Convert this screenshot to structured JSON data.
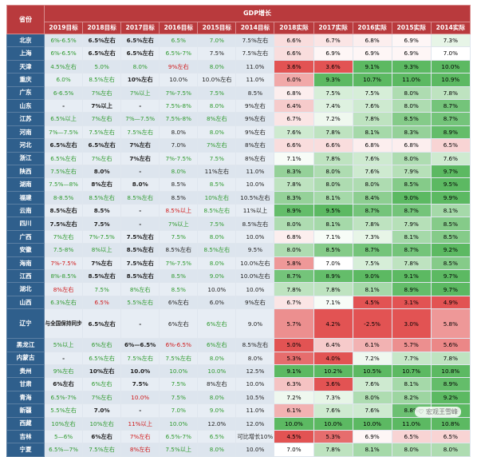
{
  "header": {
    "province_label": "省份",
    "group_label": "GDP增长",
    "columns": [
      "2019目标",
      "2018目标",
      "2017目标",
      "2016目标",
      "2015目标",
      "2014目标",
      "2018实际",
      "2017实际",
      "2016实际",
      "2015实际",
      "2014实际"
    ]
  },
  "colors": {
    "header_red": "#b93a3d",
    "province_blue": "#2f5f8c",
    "target_green": "#2f9a2f",
    "target_red": "#d01c1c",
    "heat_high_green": "#5dbb63",
    "heat_low_red": "#e35b5b"
  },
  "rows": [
    {
      "province": "北京",
      "targets": [
        [
          "6%-6.5%",
          "g"
        ],
        [
          "6.5%左右",
          "k"
        ],
        [
          "6.5%左右",
          "k"
        ],
        [
          "6.5%",
          "g"
        ],
        [
          "7.0%",
          "g"
        ],
        [
          "7.5%左右",
          "k"
        ]
      ],
      "actuals": [
        "6.6%",
        "6.7%",
        "6.8%",
        "6.9%",
        "7.3%"
      ]
    },
    {
      "province": "上海",
      "targets": [
        [
          "6%-6.5%",
          "g"
        ],
        [
          "6.5%左右",
          "k"
        ],
        [
          "6.5%左右",
          "k"
        ],
        [
          "6.5%-7%",
          "g"
        ],
        [
          "7.5%",
          "k"
        ],
        [
          "7.5%左右",
          "k"
        ]
      ],
      "actuals": [
        "6.6%",
        "6.9%",
        "6.9%",
        "6.9%",
        "7.0%"
      ]
    },
    {
      "province": "天津",
      "targets": [
        [
          "4.5%左右",
          "g"
        ],
        [
          "5.0%",
          "g"
        ],
        [
          "8.0%",
          "g"
        ],
        [
          "9%左右",
          "r"
        ],
        [
          "8.0%",
          "g"
        ],
        [
          "11.0%",
          "k"
        ]
      ],
      "actuals": [
        "3.6%",
        "3.6%",
        "9.1%",
        "9.3%",
        "10.0%"
      ]
    },
    {
      "province": "重庆",
      "targets": [
        [
          "6.0%",
          "g"
        ],
        [
          "8.5%左右",
          "g"
        ],
        [
          "10%左右",
          "k"
        ],
        [
          "10.0%",
          "k"
        ],
        [
          "10.0%左右",
          "k"
        ],
        [
          "11.0%",
          "k"
        ]
      ],
      "actuals": [
        "6.0%",
        "9.3%",
        "10.7%",
        "11.0%",
        "10.9%"
      ]
    },
    {
      "province": "广东",
      "targets": [
        [
          "6-6.5%",
          "g"
        ],
        [
          "7%左右",
          "g"
        ],
        [
          "7%以上",
          "g"
        ],
        [
          "7%-7.5%",
          "g"
        ],
        [
          "7.5%",
          "g"
        ],
        [
          "8.5%",
          "k"
        ]
      ],
      "actuals": [
        "6.8%",
        "7.5%",
        "7.5%",
        "8.0%",
        "7.8%"
      ]
    },
    {
      "province": "山东",
      "targets": [
        [
          "-",
          "k"
        ],
        [
          "7%以上",
          "k"
        ],
        [
          "-",
          "k"
        ],
        [
          "7.5%-8%",
          "g"
        ],
        [
          "8.0%",
          "g"
        ],
        [
          "9%左右",
          "k"
        ]
      ],
      "actuals": [
        "6.4%",
        "7.4%",
        "7.6%",
        "8.0%",
        "8.7%"
      ]
    },
    {
      "province": "江苏",
      "targets": [
        [
          "6.5%以上",
          "g"
        ],
        [
          "7%左右",
          "g"
        ],
        [
          "7%—7.5%",
          "g"
        ],
        [
          "7.5%-8%",
          "g"
        ],
        [
          "8%左右",
          "g"
        ],
        [
          "9%左右",
          "k"
        ]
      ],
      "actuals": [
        "6.7%",
        "7.2%",
        "7.8%",
        "8.5%",
        "8.7%"
      ]
    },
    {
      "province": "河南",
      "targets": [
        [
          "7%—7.5%",
          "g"
        ],
        [
          "7.5%左右",
          "g"
        ],
        [
          "7.5%左右",
          "g"
        ],
        [
          "8.0%",
          "k"
        ],
        [
          "8.0%",
          "g"
        ],
        [
          "9%左右",
          "k"
        ]
      ],
      "actuals": [
        "7.6%",
        "7.8%",
        "8.1%",
        "8.3%",
        "8.9%"
      ]
    },
    {
      "province": "河北",
      "targets": [
        [
          "6.5%左右",
          "k"
        ],
        [
          "6.5%左右",
          "k"
        ],
        [
          "7%左右",
          "k"
        ],
        [
          "7.0%",
          "k"
        ],
        [
          "7%左右",
          "g"
        ],
        [
          "8%左右",
          "k"
        ]
      ],
      "actuals": [
        "6.6%",
        "6.6%",
        "6.8%",
        "6.8%",
        "6.5%"
      ]
    },
    {
      "province": "浙江",
      "targets": [
        [
          "6.5%左右",
          "g"
        ],
        [
          "7%左右",
          "g"
        ],
        [
          "7%左右",
          "k"
        ],
        [
          "7%-7.5%",
          "g"
        ],
        [
          "7.5%",
          "g"
        ],
        [
          "8%左右",
          "k"
        ]
      ],
      "actuals": [
        "7.1%",
        "7.8%",
        "7.6%",
        "8.0%",
        "7.6%"
      ]
    },
    {
      "province": "陕西",
      "targets": [
        [
          "7.5%左右",
          "g"
        ],
        [
          "8.0%",
          "k"
        ],
        [
          "-",
          "k"
        ],
        [
          "8.0%",
          "g"
        ],
        [
          "11%左右",
          "k"
        ],
        [
          "11.0%",
          "k"
        ]
      ],
      "actuals": [
        "8.3%",
        "8.0%",
        "7.6%",
        "7.9%",
        "9.7%"
      ]
    },
    {
      "province": "湖南",
      "targets": [
        [
          "7.5%—8%",
          "g"
        ],
        [
          "8%左右",
          "k"
        ],
        [
          "8.0%",
          "k"
        ],
        [
          "8.5%",
          "k"
        ],
        [
          "8.5%",
          "g"
        ],
        [
          "10.0%",
          "k"
        ]
      ],
      "actuals": [
        "7.8%",
        "8.0%",
        "8.0%",
        "8.5%",
        "9.5%"
      ]
    },
    {
      "province": "福建",
      "targets": [
        [
          "8-8.5%",
          "g"
        ],
        [
          "8.5%左右",
          "g"
        ],
        [
          "8.5%左右",
          "g"
        ],
        [
          "8.5%",
          "k"
        ],
        [
          "10%左右",
          "g"
        ],
        [
          "10.5%左右",
          "k"
        ]
      ],
      "actuals": [
        "8.3%",
        "8.1%",
        "8.4%",
        "9.0%",
        "9.9%"
      ]
    },
    {
      "province": "云南",
      "targets": [
        [
          "8.5%左右",
          "k"
        ],
        [
          "8.5%",
          "k"
        ],
        [
          "-",
          "k"
        ],
        [
          "8.5%以上",
          "r"
        ],
        [
          "8.5%左右",
          "g"
        ],
        [
          "11%以上",
          "k"
        ]
      ],
      "actuals": [
        "8.9%",
        "9.5%",
        "8.7%",
        "8.7%",
        "8.1%"
      ]
    },
    {
      "province": "四川",
      "targets": [
        [
          "7.5%左右",
          "k"
        ],
        [
          "7.5%",
          "k"
        ],
        [
          "-",
          "k"
        ],
        [
          "7%以上",
          "g"
        ],
        [
          "7.5%",
          "g"
        ],
        [
          "8.5%左右",
          "k"
        ]
      ],
      "actuals": [
        "8.0%",
        "8.1%",
        "7.8%",
        "7.9%",
        "8.5%"
      ]
    },
    {
      "province": "广西",
      "targets": [
        [
          "7%左右",
          "g"
        ],
        [
          "7%-7.5%",
          "g"
        ],
        [
          "7.5%左右",
          "k"
        ],
        [
          "7.5%",
          "g"
        ],
        [
          "8.0%",
          "g"
        ],
        [
          "10.0%",
          "k"
        ]
      ],
      "actuals": [
        "6.8%",
        "7.1%",
        "7.3%",
        "8.1%",
        "8.5%"
      ]
    },
    {
      "province": "安徽",
      "targets": [
        [
          "7.5-8%",
          "g"
        ],
        [
          "8%以上",
          "g"
        ],
        [
          "8.5%左右",
          "k"
        ],
        [
          "8.5%左右",
          "k"
        ],
        [
          "8.5%左右",
          "g"
        ],
        [
          "9.5%",
          "k"
        ]
      ],
      "actuals": [
        "8.0%",
        "8.5%",
        "8.7%",
        "8.7%",
        "9.2%"
      ]
    },
    {
      "province": "海南",
      "targets": [
        [
          "7%-7.5%",
          "r"
        ],
        [
          "7%左右",
          "k"
        ],
        [
          "7.5%左右",
          "k"
        ],
        [
          "7%-7.5%",
          "g"
        ],
        [
          "8.0%",
          "g"
        ],
        [
          "10.0%左右",
          "k"
        ]
      ],
      "actuals": [
        "5.8%",
        "7.0%",
        "7.5%",
        "7.8%",
        "8.5%"
      ]
    },
    {
      "province": "江西",
      "targets": [
        [
          "8%-8.5%",
          "g"
        ],
        [
          "8.5%左右",
          "k"
        ],
        [
          "8.5%左右",
          "k"
        ],
        [
          "8.5%",
          "g"
        ],
        [
          "9.0%",
          "g"
        ],
        [
          "10.0%左右",
          "k"
        ]
      ],
      "actuals": [
        "8.7%",
        "8.9%",
        "9.0%",
        "9.1%",
        "9.7%"
      ]
    },
    {
      "province": "湖北",
      "targets": [
        [
          "8%左右",
          "r"
        ],
        [
          "7.5%",
          "g"
        ],
        [
          "8%左右",
          "g"
        ],
        [
          "8.5%",
          "g"
        ],
        [
          "10.0%",
          "k"
        ],
        [
          "10.0%",
          "k"
        ]
      ],
      "actuals": [
        "7.8%",
        "7.8%",
        "8.1%",
        "8.9%",
        "9.7%"
      ]
    },
    {
      "province": "山西",
      "targets": [
        [
          "6.3%左右",
          "g"
        ],
        [
          "6.5%",
          "r"
        ],
        [
          "5.5%左右",
          "g"
        ],
        [
          "6%左右",
          "k"
        ],
        [
          "6.0%",
          "k"
        ],
        [
          "9%左右",
          "k"
        ]
      ],
      "actuals": [
        "6.7%",
        "7.1%",
        "4.5%",
        "3.1%",
        "4.9%"
      ]
    },
    {
      "province": "辽宁",
      "tall": true,
      "targets": [
        [
          "与全国保持同步",
          "k"
        ],
        [
          "6.5%左右",
          "k"
        ],
        [
          "-",
          "k"
        ],
        [
          "6%左右",
          "k"
        ],
        [
          "6%左右",
          "g"
        ],
        [
          "9.0%",
          "k"
        ]
      ],
      "actuals": [
        "5.7%",
        "4.2%",
        "-2.5%",
        "3.0%",
        "5.8%"
      ]
    },
    {
      "province": "黑龙江",
      "targets": [
        [
          "5%以上",
          "g"
        ],
        [
          "6%左右",
          "g"
        ],
        [
          "6%—6.5%",
          "k"
        ],
        [
          "6%-6.5%",
          "r"
        ],
        [
          "6%左右",
          "g"
        ],
        [
          "8.5%左右",
          "k"
        ]
      ],
      "actuals": [
        "5.0%",
        "6.4%",
        "6.1%",
        "5.7%",
        "5.6%"
      ]
    },
    {
      "province": "内蒙古",
      "targets": [
        [
          "-",
          "k"
        ],
        [
          "6.5%左右",
          "g"
        ],
        [
          "7.5%左右",
          "g"
        ],
        [
          "7.5%左右",
          "g"
        ],
        [
          "8.0%",
          "g"
        ],
        [
          "8.0%",
          "k"
        ]
      ],
      "actuals": [
        "5.3%",
        "4.0%",
        "7.2%",
        "7.7%",
        "7.8%"
      ]
    },
    {
      "province": "贵州",
      "targets": [
        [
          "9%左右",
          "g"
        ],
        [
          "10%左右",
          "k"
        ],
        [
          "10.0%",
          "k"
        ],
        [
          "10.0%",
          "g"
        ],
        [
          "10.0%",
          "g"
        ],
        [
          "12.5%",
          "k"
        ]
      ],
      "actuals": [
        "9.1%",
        "10.2%",
        "10.5%",
        "10.7%",
        "10.8%"
      ]
    },
    {
      "province": "甘肃",
      "targets": [
        [
          "6%左右",
          "k"
        ],
        [
          "6%左右",
          "g"
        ],
        [
          "7.5%",
          "k"
        ],
        [
          "7.5%",
          "g"
        ],
        [
          "8%左右",
          "k"
        ],
        [
          "10.0%",
          "k"
        ]
      ],
      "actuals": [
        "6.3%",
        "3.6%",
        "7.6%",
        "8.1%",
        "8.9%"
      ]
    },
    {
      "province": "青海",
      "targets": [
        [
          "6.5%-7%",
          "g"
        ],
        [
          "7%左右",
          "g"
        ],
        [
          "10.0%",
          "r"
        ],
        [
          "7.5%",
          "g"
        ],
        [
          "8.0%",
          "g"
        ],
        [
          "10.5%",
          "k"
        ]
      ],
      "actuals": [
        "7.2%",
        "7.3%",
        "8.0%",
        "8.2%",
        "9.2%"
      ]
    },
    {
      "province": "新疆",
      "targets": [
        [
          "5.5%左右",
          "g"
        ],
        [
          "7.0%",
          "k"
        ],
        [
          "-",
          "k"
        ],
        [
          "7.0%",
          "g"
        ],
        [
          "9.0%",
          "g"
        ],
        [
          "11.0%",
          "k"
        ]
      ],
      "actuals": [
        "6.1%",
        "7.6%",
        "7.6%",
        "8.8%",
        "10.0%"
      ]
    },
    {
      "province": "西藏",
      "targets": [
        [
          "10%左右",
          "g"
        ],
        [
          "10%左右",
          "g"
        ],
        [
          "11%以上",
          "r"
        ],
        [
          "10.0%",
          "g"
        ],
        [
          "12.0%",
          "k"
        ],
        [
          "12.0%",
          "k"
        ]
      ],
      "actuals": [
        "10.0%",
        "10.0%",
        "10.0%",
        "11.0%",
        "10.8%"
      ]
    },
    {
      "province": "吉林",
      "targets": [
        [
          "5—6%",
          "g"
        ],
        [
          "6%左右",
          "k"
        ],
        [
          "7%左右",
          "r"
        ],
        [
          "6.5%-7%",
          "g"
        ],
        [
          "6.5%",
          "g"
        ],
        [
          "可比增长10%",
          "k"
        ]
      ],
      "actuals": [
        "4.5%",
        "5.3%",
        "6.9%",
        "6.5%",
        "6.5%"
      ]
    },
    {
      "province": "宁夏",
      "targets": [
        [
          "6.5%—7%",
          "g"
        ],
        [
          "7.5%左右",
          "g"
        ],
        [
          "8%左右",
          "r"
        ],
        [
          "7.5%以上",
          "g"
        ],
        [
          "8.0%",
          "g"
        ],
        [
          "10.0%",
          "k"
        ]
      ],
      "actuals": [
        "7.0%",
        "7.8%",
        "8.1%",
        "8.0%",
        "8.0%"
      ]
    }
  ],
  "watermark": "宏观王雪峰"
}
